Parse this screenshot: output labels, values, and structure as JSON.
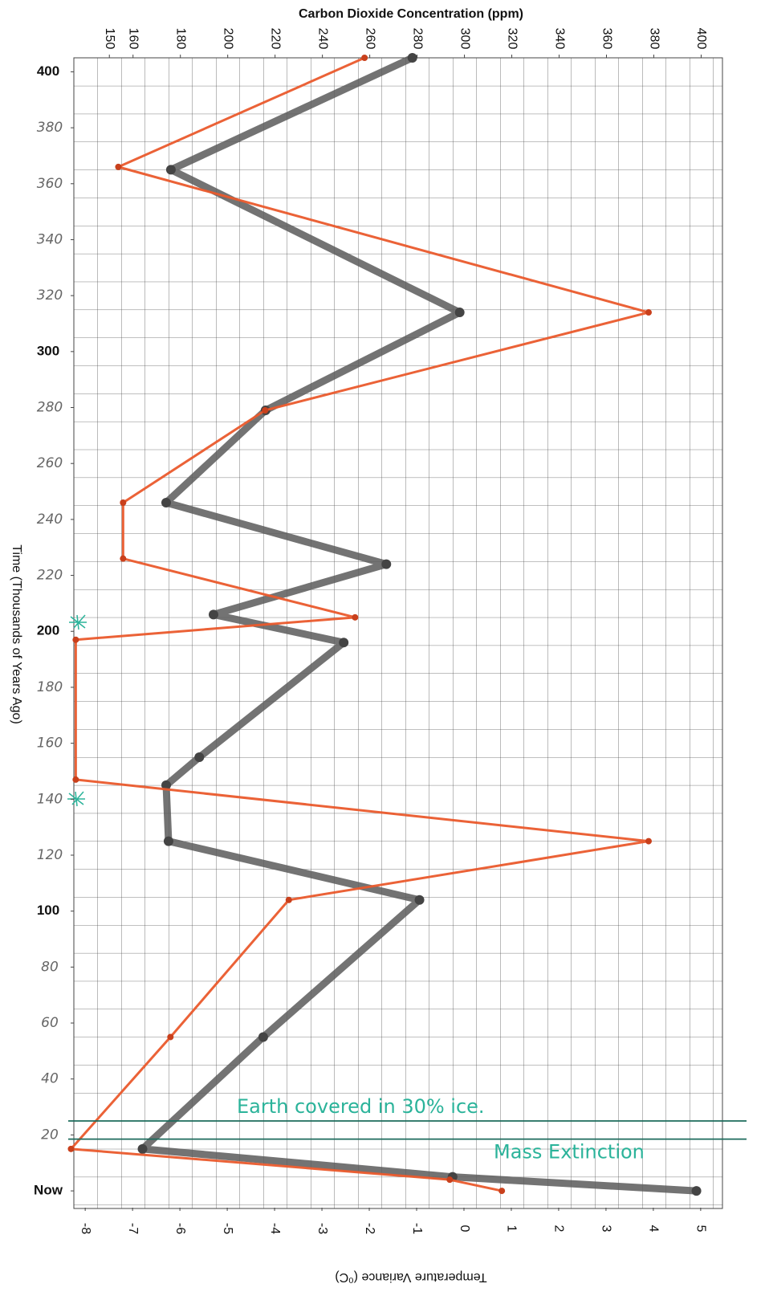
{
  "chart_data": {
    "type": "line",
    "orientation": "vertical",
    "title": "Carbon Dioxide Concentration (ppm)",
    "x2_label": "Temperature Variance (⁰C)",
    "y_label": "Time (Thousands of Years Ago)",
    "ylim": [
      -6,
      405
    ],
    "yticks": [
      400,
      380,
      360,
      340,
      320,
      300,
      280,
      260,
      240,
      220,
      200,
      180,
      160,
      140,
      120,
      100,
      80,
      60,
      40,
      20,
      {
        "value": 0,
        "label": "Now"
      }
    ],
    "xlim": [
      135,
      409
    ],
    "xticks": [
      150,
      160,
      180,
      200,
      220,
      240,
      260,
      280,
      300,
      320,
      340,
      360,
      380,
      400
    ],
    "x2lim": [
      -8.24,
      5.46
    ],
    "x2ticks": [
      -8,
      -7,
      -6,
      -5,
      -4,
      -3,
      -2,
      -1,
      0,
      1,
      2,
      3,
      4,
      5
    ],
    "series": [
      {
        "color": "#5a5a5a",
        "axis": "x",
        "y": [
          405,
          365,
          314,
          279,
          246,
          224,
          206,
          196,
          155,
          145,
          125,
          104,
          55,
          15,
          5,
          0
        ],
        "values": [
          278,
          176,
          298,
          216,
          174,
          267,
          194,
          249,
          188,
          174,
          175,
          281,
          215,
          164,
          295,
          398
        ]
      },
      {
        "color": "#ea5a2c",
        "axis": "x2",
        "y": [
          405,
          366,
          314,
          279,
          246,
          226,
          205,
          197,
          147,
          125,
          104,
          55,
          15,
          4,
          0
        ],
        "values": [
          -2.1,
          -7.3,
          3.9,
          -4.2,
          -7.2,
          -7.2,
          -2.3,
          -8.2,
          -8.2,
          3.9,
          -3.7,
          -6.2,
          -8.3,
          -0.3,
          0.8
        ]
      }
    ],
    "annotations": [
      {
        "text": "Earth covered in 30% ice.",
        "y": 25
      },
      {
        "text": "Mass Extinction",
        "y": 18.5
      }
    ]
  }
}
